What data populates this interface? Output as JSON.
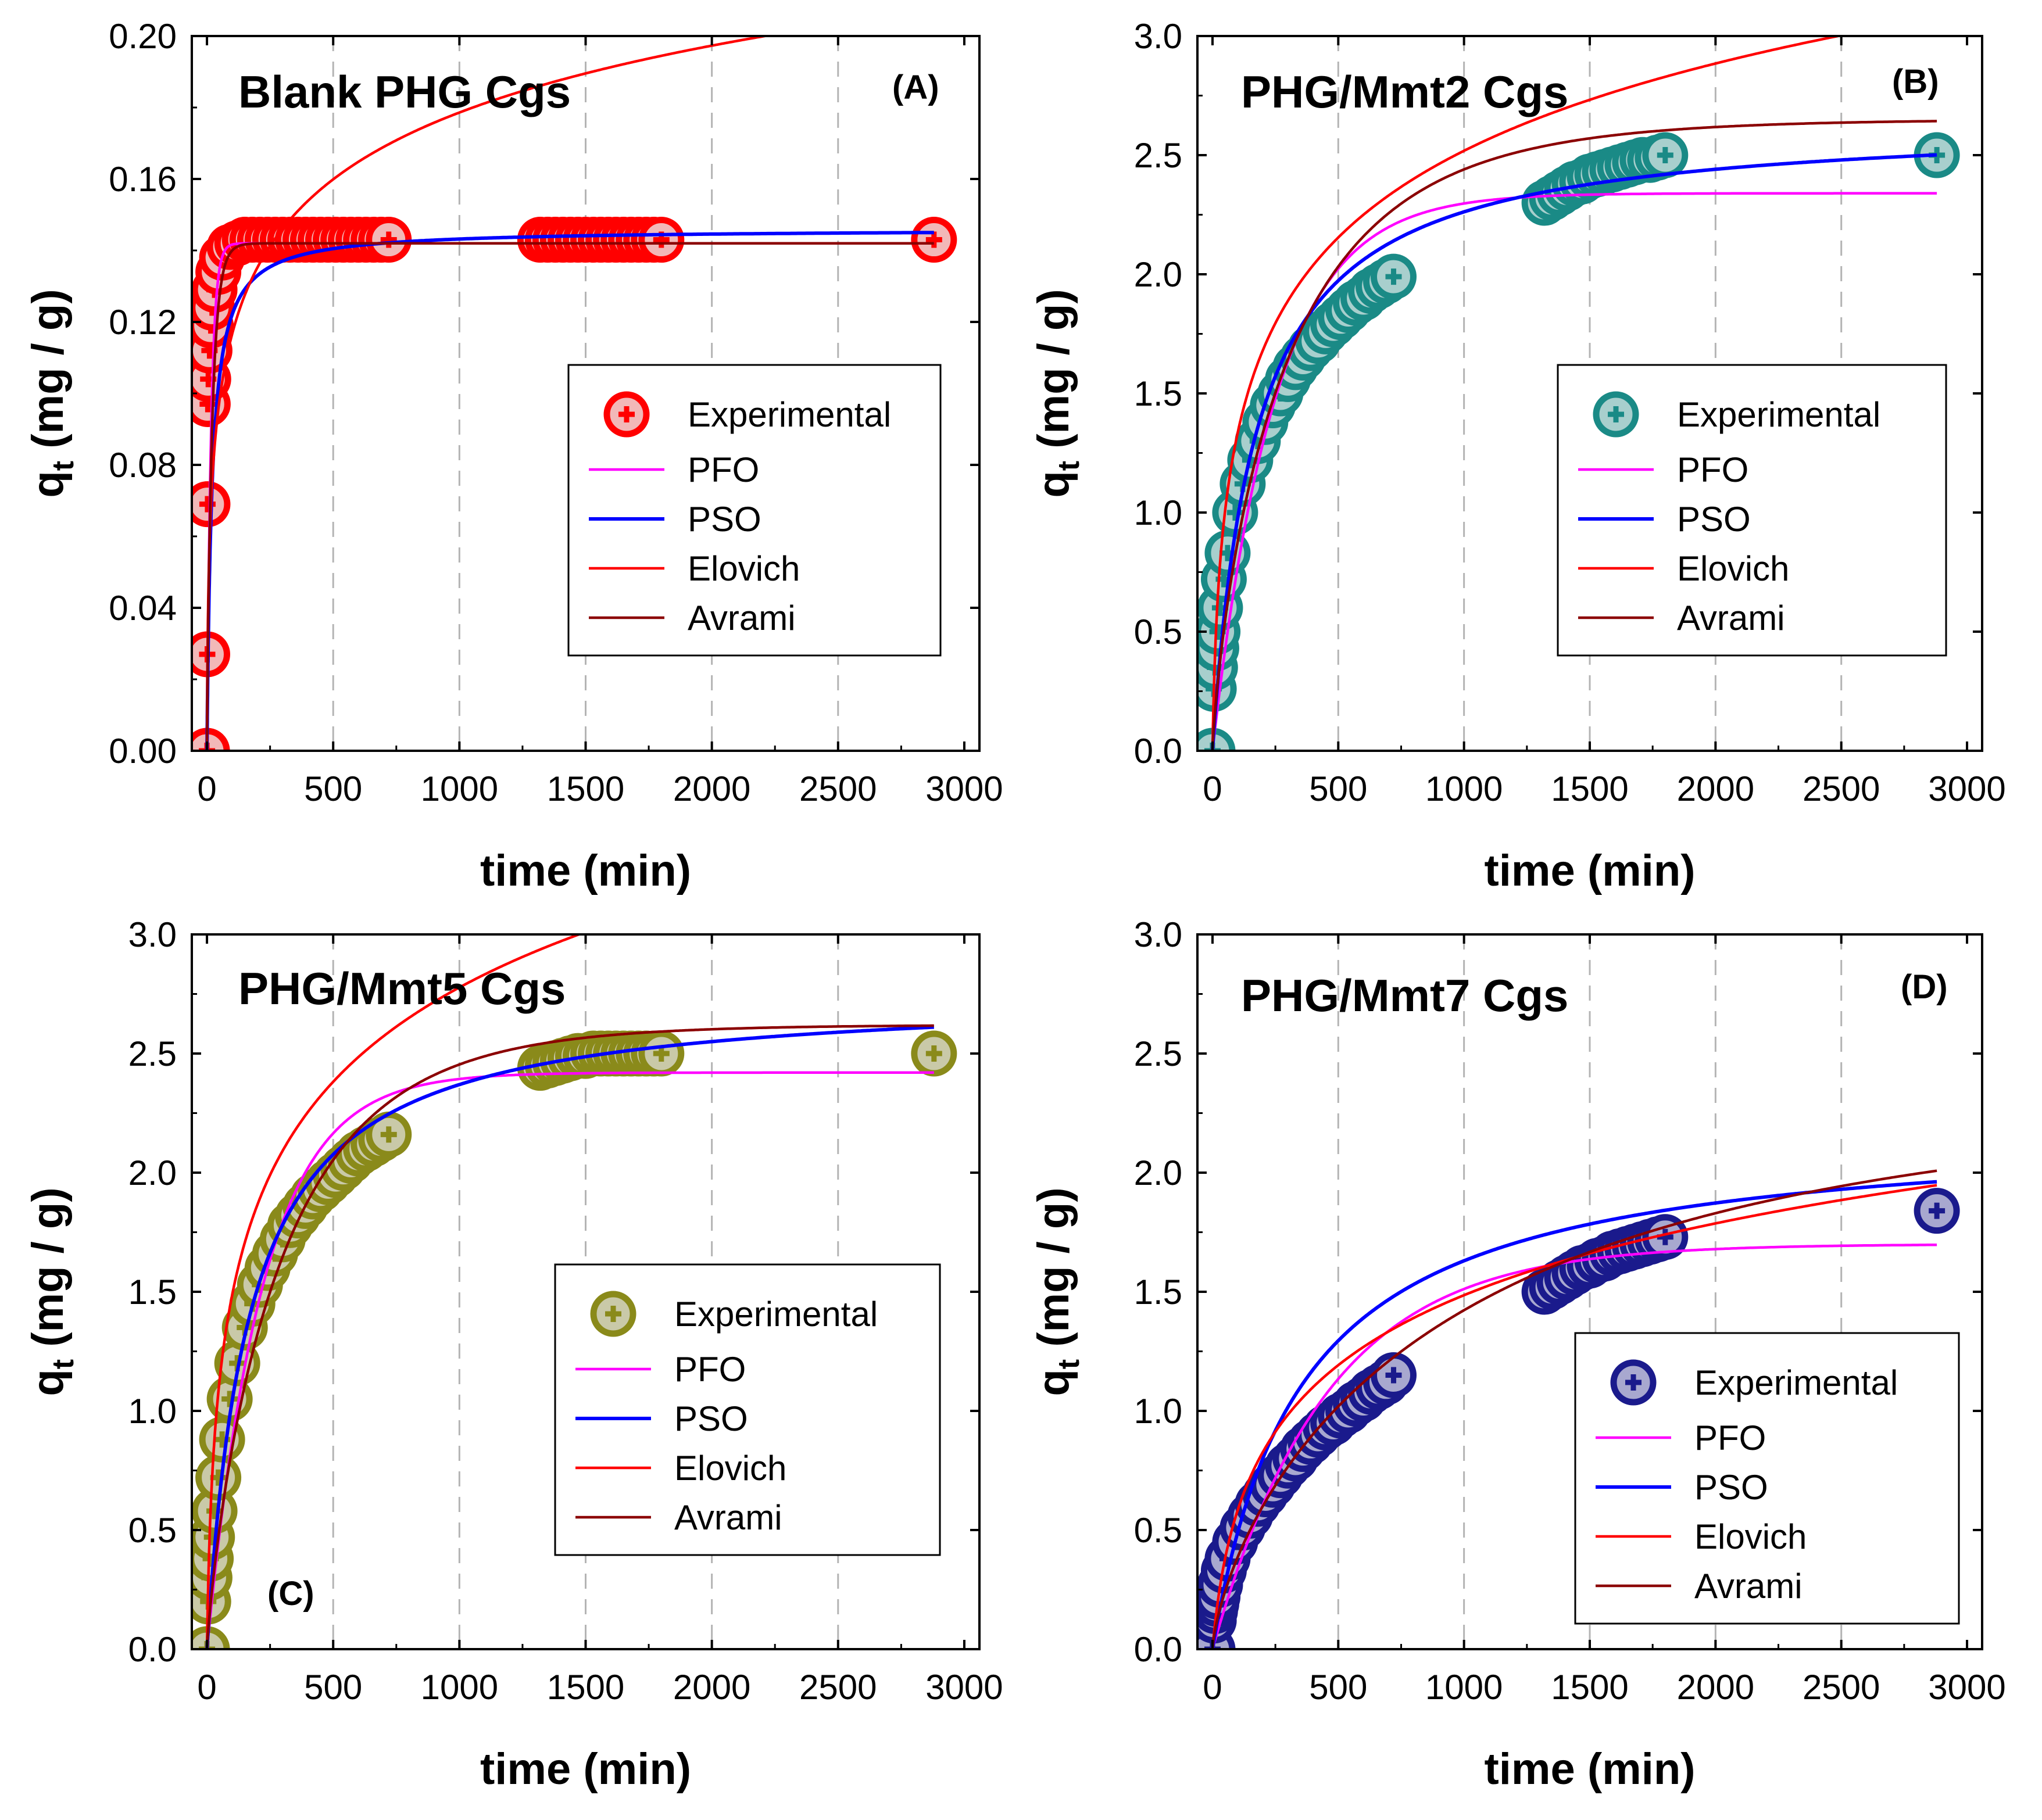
{
  "chart_data": [
    {
      "type": "scatter",
      "panel_label": "(A)",
      "title": "Blank PHG Cgs",
      "xlabel": "time (min)",
      "ylabel_main": "q",
      "ylabel_sub": "t",
      "ylabel_rest": " (mg / g)",
      "xlim": [
        -60,
        3060
      ],
      "ylim": [
        0,
        0.2
      ],
      "xticks": [
        0,
        500,
        1000,
        1500,
        2000,
        2500,
        3000
      ],
      "xtick_labels": [
        "0",
        "500",
        "1000",
        "1500",
        "2000",
        "2500",
        "3000"
      ],
      "yticks": [
        0,
        0.04,
        0.08,
        0.12,
        0.16,
        0.2
      ],
      "ytick_labels": [
        "0.00",
        "0.04",
        "0.08",
        "0.12",
        "0.16",
        "0.20"
      ],
      "grid_x": [
        500,
        1000,
        1500,
        2000,
        2500
      ],
      "marker_color": "#ff0000",
      "marker_fill": "#f2b8b8",
      "legend_position": "bottom-right",
      "legend": [
        "Experimental",
        "PFO",
        "PSO",
        "Elovich",
        "Avrami"
      ],
      "experimental": {
        "name": "Experimental",
        "x": [
          0,
          1,
          2,
          3,
          5,
          10,
          15,
          20,
          30,
          45,
          60,
          90,
          120,
          150,
          180,
          210,
          240,
          270,
          300,
          330,
          360,
          390,
          420,
          450,
          480,
          510,
          540,
          570,
          600,
          630,
          660,
          690,
          720,
          1320,
          1350,
          1380,
          1410,
          1440,
          1470,
          1500,
          1530,
          1560,
          1590,
          1620,
          1650,
          1680,
          1710,
          1740,
          1770,
          1800,
          2880
        ],
        "y": [
          0,
          0.027,
          0.069,
          0.097,
          0.104,
          0.112,
          0.119,
          0.124,
          0.129,
          0.134,
          0.138,
          0.141,
          0.142,
          0.143,
          0.143,
          0.143,
          0.143,
          0.143,
          0.143,
          0.143,
          0.143,
          0.143,
          0.143,
          0.143,
          0.143,
          0.143,
          0.143,
          0.143,
          0.143,
          0.143,
          0.143,
          0.143,
          0.143,
          0.143,
          0.143,
          0.143,
          0.143,
          0.143,
          0.143,
          0.143,
          0.143,
          0.143,
          0.143,
          0.143,
          0.143,
          0.143,
          0.143,
          0.143,
          0.143,
          0.143,
          0.143
        ]
      },
      "series": [
        {
          "name": "PFO",
          "model": "pfo",
          "color": "#ff00ff",
          "params": {
            "qe": 0.142,
            "k": 0.06
          }
        },
        {
          "name": "PSO",
          "model": "pso",
          "color": "#0000ff",
          "params": {
            "qe": 0.146,
            "k": 0.35
          }
        },
        {
          "name": "Elovich",
          "model": "elovich",
          "color": "#ff0000",
          "params": {
            "a": 0.02,
            "b": 37
          }
        },
        {
          "name": "Avrami",
          "model": "avrami",
          "color": "#8b0000",
          "params": {
            "qe": 0.142,
            "k": 0.05,
            "n": 0.9
          }
        }
      ]
    },
    {
      "type": "scatter",
      "panel_label": "(B)",
      "title": "PHG/Mmt2 Cgs",
      "xlabel": "time (min)",
      "ylabel_main": "q",
      "ylabel_sub": "t",
      "ylabel_rest": " (mg / g)",
      "xlim": [
        -60,
        3060
      ],
      "ylim": [
        0,
        3
      ],
      "xticks": [
        0,
        500,
        1000,
        1500,
        2000,
        2500,
        3000
      ],
      "xtick_labels": [
        "0",
        "500",
        "1000",
        "1500",
        "2000",
        "2500",
        "3000"
      ],
      "yticks": [
        0,
        0.5,
        1,
        1.5,
        2,
        2.5,
        3
      ],
      "ytick_labels": [
        "0.0",
        "0.5",
        "1.0",
        "1.5",
        "2.0",
        "2.5",
        "3.0"
      ],
      "grid_x": [
        500,
        1000,
        1500,
        2000,
        2500
      ],
      "marker_color": "#1a8a86",
      "marker_fill": "#a8cfcd",
      "legend_position": "bottom-right",
      "legend": [
        "Experimental",
        "PFO",
        "PSO",
        "Elovich",
        "Avrami"
      ],
      "experimental": {
        "name": "Experimental",
        "x": [
          0,
          5,
          10,
          15,
          20,
          30,
          45,
          60,
          90,
          120,
          150,
          180,
          210,
          240,
          270,
          300,
          330,
          360,
          390,
          420,
          450,
          480,
          510,
          540,
          570,
          600,
          630,
          660,
          690,
          720,
          1320,
          1350,
          1380,
          1410,
          1440,
          1470,
          1500,
          1530,
          1560,
          1590,
          1620,
          1650,
          1680,
          1710,
          1740,
          1770,
          1800,
          2880
        ],
        "y": [
          0,
          0.26,
          0.35,
          0.43,
          0.5,
          0.6,
          0.72,
          0.83,
          1.0,
          1.12,
          1.22,
          1.3,
          1.38,
          1.45,
          1.5,
          1.56,
          1.61,
          1.65,
          1.69,
          1.72,
          1.76,
          1.79,
          1.82,
          1.85,
          1.88,
          1.9,
          1.93,
          1.95,
          1.97,
          1.99,
          2.3,
          2.32,
          2.34,
          2.36,
          2.38,
          2.39,
          2.41,
          2.42,
          2.43,
          2.44,
          2.45,
          2.46,
          2.47,
          2.48,
          2.48,
          2.49,
          2.5,
          2.5
        ]
      },
      "series": [
        {
          "name": "PFO",
          "model": "pfo",
          "color": "#ff00ff",
          "params": {
            "qe": 2.34,
            "k": 0.004
          }
        },
        {
          "name": "PSO",
          "model": "pso",
          "color": "#0000ff",
          "params": {
            "qe": 2.65,
            "k": 0.0022
          }
        },
        {
          "name": "Elovich",
          "model": "elovich",
          "color": "#ff0000",
          "params": {
            "a": 0.06,
            "b": 1.88
          }
        },
        {
          "name": "Avrami",
          "model": "avrami",
          "color": "#8b0000",
          "params": {
            "qe": 2.65,
            "k": 0.0032,
            "n": 0.8
          }
        }
      ]
    },
    {
      "type": "scatter",
      "panel_label": "(C)",
      "title": "PHG/Mmt5 Cgs",
      "xlabel": "time (min)",
      "ylabel_main": "q",
      "ylabel_sub": "t",
      "ylabel_rest": " (mg / g)",
      "xlim": [
        -60,
        3060
      ],
      "ylim": [
        0,
        3
      ],
      "xticks": [
        0,
        500,
        1000,
        1500,
        2000,
        2500,
        3000
      ],
      "xtick_labels": [
        "0",
        "500",
        "1000",
        "1500",
        "2000",
        "2500",
        "3000"
      ],
      "yticks": [
        0,
        0.5,
        1,
        1.5,
        2,
        2.5,
        3
      ],
      "ytick_labels": [
        "0.0",
        "0.5",
        "1.0",
        "1.5",
        "2.0",
        "2.5",
        "3.0"
      ],
      "grid_x": [
        500,
        1000,
        1500,
        2000,
        2500
      ],
      "marker_color": "#8a8a1a",
      "marker_fill": "#c9c9a8",
      "legend_position": "bottom-right",
      "legend": [
        "Experimental",
        "PFO",
        "PSO",
        "Elovich",
        "Avrami"
      ],
      "experimental": {
        "name": "Experimental",
        "x": [
          0,
          5,
          10,
          15,
          20,
          30,
          45,
          60,
          90,
          120,
          150,
          180,
          210,
          240,
          270,
          300,
          330,
          360,
          390,
          420,
          450,
          480,
          510,
          540,
          570,
          600,
          630,
          660,
          690,
          720,
          1320,
          1350,
          1380,
          1410,
          1440,
          1470,
          1500,
          1530,
          1560,
          1590,
          1620,
          1650,
          1680,
          1710,
          1740,
          1770,
          1800,
          2880
        ],
        "y": [
          0,
          0.2,
          0.3,
          0.38,
          0.47,
          0.58,
          0.72,
          0.88,
          1.05,
          1.2,
          1.35,
          1.45,
          1.53,
          1.6,
          1.66,
          1.72,
          1.78,
          1.82,
          1.86,
          1.9,
          1.93,
          1.96,
          1.99,
          2.02,
          2.05,
          2.08,
          2.1,
          2.12,
          2.14,
          2.16,
          2.44,
          2.45,
          2.46,
          2.47,
          2.48,
          2.49,
          2.49,
          2.5,
          2.5,
          2.5,
          2.5,
          2.5,
          2.5,
          2.5,
          2.5,
          2.5,
          2.5,
          2.5
        ]
      },
      "series": [
        {
          "name": "PFO",
          "model": "pfo",
          "color": "#ff00ff",
          "params": {
            "qe": 2.42,
            "k": 0.0045
          }
        },
        {
          "name": "PSO",
          "model": "pso",
          "color": "#0000ff",
          "params": {
            "qe": 2.76,
            "k": 0.0022
          }
        },
        {
          "name": "Elovich",
          "model": "elovich",
          "color": "#ff0000",
          "params": {
            "a": 0.07,
            "b": 1.73
          }
        },
        {
          "name": "Avrami",
          "model": "avrami",
          "color": "#8b0000",
          "params": {
            "qe": 2.62,
            "k": 0.0033,
            "n": 0.85
          }
        }
      ]
    },
    {
      "type": "scatter",
      "panel_label": "(D)",
      "title": "PHG/Mmt7 Cgs",
      "xlabel": "time (min)",
      "ylabel_main": "q",
      "ylabel_sub": "t",
      "ylabel_rest": " (mg / g)",
      "xlim": [
        -60,
        3060
      ],
      "ylim": [
        0,
        3
      ],
      "xticks": [
        0,
        500,
        1000,
        1500,
        2000,
        2500,
        3000
      ],
      "xtick_labels": [
        "0",
        "500",
        "1000",
        "1500",
        "2000",
        "2500",
        "3000"
      ],
      "yticks": [
        0,
        0.5,
        1,
        1.5,
        2,
        2.5,
        3
      ],
      "ytick_labels": [
        "0.0",
        "0.5",
        "1.0",
        "1.5",
        "2.0",
        "2.5",
        "3.0"
      ],
      "grid_x": [
        500,
        1000,
        1500,
        2000,
        2500
      ],
      "marker_color": "#1a1a8c",
      "marker_fill": "#a8a8cf",
      "legend_position": "bottom-right",
      "legend": [
        "Experimental",
        "PFO",
        "PSO",
        "Elovich",
        "Avrami"
      ],
      "experimental": {
        "name": "Experimental",
        "x": [
          0,
          5,
          10,
          15,
          20,
          30,
          45,
          60,
          90,
          120,
          150,
          180,
          210,
          240,
          270,
          300,
          330,
          360,
          390,
          420,
          450,
          480,
          510,
          540,
          570,
          600,
          630,
          660,
          690,
          720,
          1320,
          1350,
          1380,
          1410,
          1440,
          1470,
          1500,
          1530,
          1560,
          1590,
          1620,
          1650,
          1680,
          1710,
          1740,
          1770,
          1800,
          2880
        ],
        "y": [
          0,
          0.12,
          0.16,
          0.19,
          0.22,
          0.27,
          0.33,
          0.38,
          0.45,
          0.51,
          0.56,
          0.61,
          0.65,
          0.69,
          0.73,
          0.77,
          0.8,
          0.84,
          0.87,
          0.9,
          0.93,
          0.95,
          0.98,
          1.0,
          1.03,
          1.05,
          1.08,
          1.1,
          1.12,
          1.15,
          1.5,
          1.52,
          1.54,
          1.56,
          1.58,
          1.6,
          1.61,
          1.63,
          1.64,
          1.66,
          1.67,
          1.68,
          1.69,
          1.7,
          1.71,
          1.72,
          1.73,
          1.84
        ]
      },
      "series": [
        {
          "name": "PFO",
          "model": "pfo",
          "color": "#ff00ff",
          "params": {
            "qe": 1.7,
            "k": 0.0022
          }
        },
        {
          "name": "PSO",
          "model": "pso",
          "color": "#0000ff",
          "params": {
            "qe": 2.2,
            "k": 0.0013
          }
        },
        {
          "name": "Elovich",
          "model": "elovich",
          "color": "#ff0000",
          "params": {
            "a": 0.012,
            "b": 2.24
          }
        },
        {
          "name": "Avrami",
          "model": "avrami",
          "color": "#8b0000",
          "params": {
            "qe": 2.3,
            "k": 0.00095,
            "n": 0.72
          }
        }
      ]
    }
  ]
}
